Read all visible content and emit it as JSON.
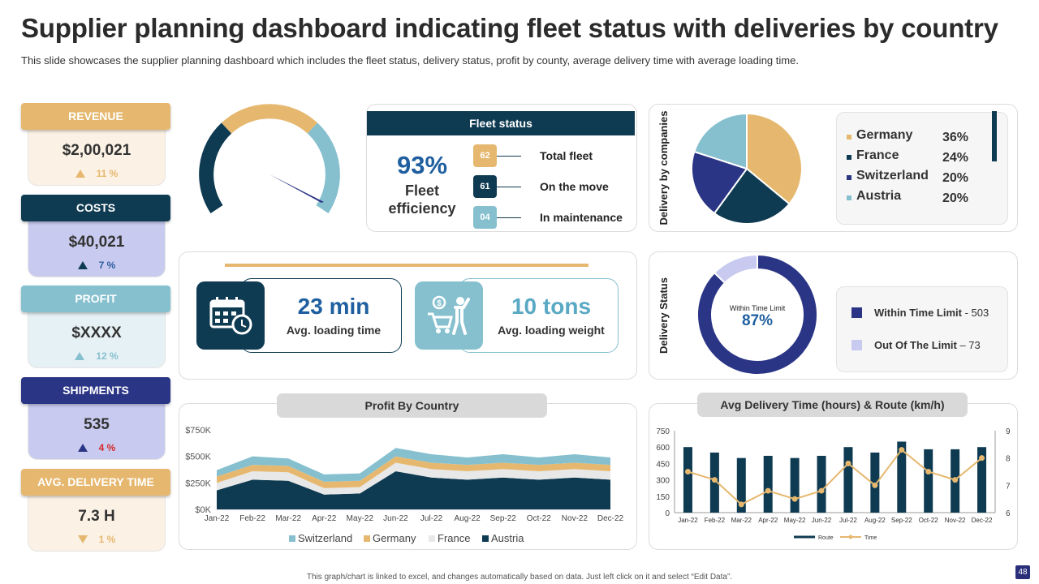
{
  "title": "Supplier planning dashboard indicating fleet status with deliveries by country",
  "subtitle": "This slide showcases the supplier planning dashboard which includes the fleet status, delivery status, profit by county, average delivery time with average loading time.",
  "kpis": [
    {
      "label": "REVENUE",
      "value": "$2,00,021",
      "delta": "11 %",
      "trend": "up",
      "label_color": "#e6b86f",
      "box_color": "#fbf1e4",
      "tri_color": "#e6b86f",
      "delta_color": "#e6b86f"
    },
    {
      "label": "COSTS",
      "value": "$40,021",
      "delta": "7 %",
      "trend": "up",
      "label_color": "#0f3b52",
      "box_color": "#c8cbef",
      "tri_color": "#0f3b52",
      "delta_color": "#2e5d9f"
    },
    {
      "label": "PROFIT",
      "value": "$XXXX",
      "delta": "12 %",
      "trend": "up",
      "label_color": "#86c0cf",
      "box_color": "#e6f1f5",
      "tri_color": "#86c0cf",
      "delta_color": "#86c0cf"
    },
    {
      "label": "SHIPMENTS",
      "value": "535",
      "delta": "4 %",
      "trend": "up",
      "label_color": "#2b3585",
      "box_color": "#c8cbef",
      "tri_color": "#2b3585",
      "delta_color": "#d22b2b"
    },
    {
      "label": "AVG. DELIVERY TIME",
      "value": "7.3 H",
      "delta": "1 %",
      "trend": "down",
      "label_color": "#e6b86f",
      "box_color": "#fbf1e4",
      "tri_color": "#e6b86f",
      "delta_color": "#e6b86f"
    }
  ],
  "fleet": {
    "header": "Fleet status",
    "efficiency_value": "93%",
    "efficiency_label": "Fleet efficiency",
    "rows": [
      {
        "count": "62",
        "label": "Total fleet",
        "color": "#e6b86f"
      },
      {
        "count": "61",
        "label": "On the move",
        "color": "#0f3b52"
      },
      {
        "count": "04",
        "label": "In maintenance",
        "color": "#86c0cf"
      }
    ]
  },
  "loading": {
    "time_value": "23 min",
    "time_label": "Avg. loading time",
    "weight_value": "10 tons",
    "weight_label": "Avg. loading weight"
  },
  "delivery_by_companies": {
    "axis_label": "Delivery by companies",
    "chart_data": {
      "type": "pie",
      "slices": [
        {
          "name": "Germany",
          "value": 36,
          "label": "36%",
          "color": "#e6b86f"
        },
        {
          "name": "France",
          "value": 24,
          "label": "24%",
          "color": "#0f3b52"
        },
        {
          "name": "Switzerland",
          "value": 20,
          "label": "20%",
          "color": "#2b3585"
        },
        {
          "name": "Austria",
          "value": 20,
          "label": "20%",
          "color": "#86c0cf"
        }
      ]
    }
  },
  "delivery_status": {
    "axis_label": "Delivery Status",
    "center_label": "Within Time Limit",
    "center_value": "87%",
    "chart_data": {
      "type": "pie",
      "slices": [
        {
          "name": "Within Time Limit",
          "value": 503,
          "color": "#2b3585"
        },
        {
          "name": "Out Of The Limit",
          "value": 73,
          "color": "#c8cbef"
        }
      ]
    },
    "legend": [
      {
        "name": "Within Time Limit",
        "sep": " - ",
        "count": "503",
        "color": "#2b3585"
      },
      {
        "name": "Out Of The Limit",
        "sep": " – ",
        "count": "73",
        "color": "#c8cbef"
      }
    ]
  },
  "profit_by_country": {
    "title": "Profit By Country",
    "chart_data": {
      "type": "area",
      "stacked": true,
      "categories": [
        "Jan-22",
        "Feb-22",
        "Mar-22",
        "Apr-22",
        "May-22",
        "Jun-22",
        "Jul-22",
        "Aug-22",
        "Sep-22",
        "Oct-22",
        "Nov-22",
        "Dec-22"
      ],
      "ylim": [
        0,
        750
      ],
      "yticks": [
        "$0K",
        "$250K",
        "$500K",
        "$750K"
      ],
      "series": [
        {
          "name": "Austria",
          "color": "#0f3b52",
          "values": [
            180,
            280,
            270,
            140,
            150,
            360,
            300,
            280,
            300,
            280,
            300,
            280
          ]
        },
        {
          "name": "France",
          "color": "#e8e8e8",
          "values": [
            70,
            80,
            80,
            60,
            60,
            80,
            80,
            80,
            80,
            80,
            80,
            80
          ]
        },
        {
          "name": "Germany",
          "color": "#e6b86f",
          "values": [
            60,
            60,
            60,
            60,
            60,
            60,
            60,
            60,
            60,
            60,
            60,
            60
          ]
        },
        {
          "name": "Switzerland",
          "color": "#86c0cf",
          "values": [
            60,
            80,
            70,
            70,
            70,
            80,
            80,
            70,
            80,
            70,
            80,
            70
          ]
        }
      ],
      "legend_order": [
        "Switzerland",
        "Germany",
        "France",
        "Austria"
      ]
    }
  },
  "avg_delivery": {
    "title": "Avg Delivery Time (hours) & Route (km/h)",
    "chart_data": {
      "type": "bar",
      "categories": [
        "Jan-22",
        "Feb-22",
        "Mar-22",
        "Apr-22",
        "May-22",
        "Jun-22",
        "Jul-22",
        "Aug-22",
        "Sep-22",
        "Oct-22",
        "Nov-22",
        "Dec-22"
      ],
      "ylim": [
        0,
        750
      ],
      "yticks": [
        "0",
        "150",
        "300",
        "450",
        "600",
        "750"
      ],
      "y2lim": [
        6,
        9
      ],
      "y2ticks": [
        "6",
        "7",
        "8",
        "9"
      ],
      "series": [
        {
          "name": "Route",
          "type": "bar",
          "axis": "left",
          "color": "#0f3b52",
          "values": [
            600,
            550,
            500,
            520,
            500,
            520,
            600,
            550,
            650,
            580,
            580,
            600
          ]
        },
        {
          "name": "Time",
          "type": "line",
          "axis": "right",
          "color": "#e6b86f",
          "values": [
            7.5,
            7.2,
            6.3,
            6.8,
            6.5,
            6.8,
            7.8,
            7.0,
            8.3,
            7.5,
            7.2,
            8.0
          ]
        }
      ]
    }
  },
  "footer": "This graph/chart is linked to excel, and changes automatically based on data. Just left click on it and select “Edit Data”.",
  "page_number": "48"
}
